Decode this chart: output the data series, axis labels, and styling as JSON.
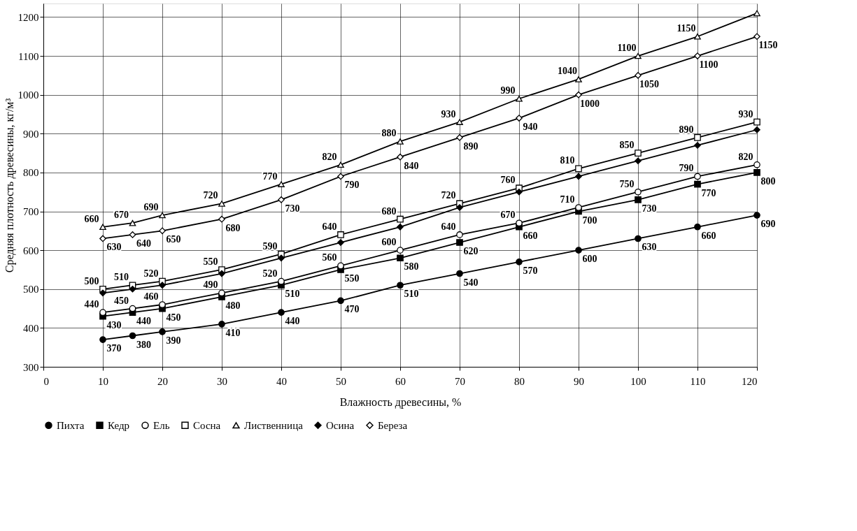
{
  "chart_data": {
    "type": "line",
    "xlabel": "Влажность древесины, %",
    "ylabel": "Средняя плотность древесины, кг/м³",
    "x": [
      10,
      15,
      20,
      30,
      40,
      50,
      60,
      70,
      80,
      90,
      100,
      110,
      120
    ],
    "xlim": [
      0,
      120
    ],
    "xticks": [
      0,
      10,
      20,
      30,
      40,
      50,
      60,
      70,
      80,
      90,
      100,
      110,
      120
    ],
    "ylim": [
      300,
      1235
    ],
    "yticks": [
      300,
      400,
      500,
      600,
      700,
      800,
      900,
      {
        "value": 1000,
        "label": "1000"
      },
      {
        "value": 1100,
        "label": "1100"
      },
      {
        "value": 1200,
        "label": "1200"
      }
    ],
    "grid": true,
    "legend": "bottom",
    "series": [
      {
        "name": "Пихта",
        "color": "#000000",
        "marker": "circle",
        "values": [
          370,
          380,
          390,
          410,
          440,
          470,
          510,
          540,
          570,
          600,
          630,
          660,
          690
        ],
        "value_labels": [
          "370",
          "380",
          "390",
          "410",
          "440",
          "470",
          "510",
          "540",
          "570",
          "600",
          "630",
          "660",
          "690"
        ]
      },
      {
        "name": "Кедр",
        "color": "#000000",
        "marker": "square",
        "values": [
          430,
          440,
          450,
          480,
          510,
          550,
          580,
          620,
          660,
          700,
          730,
          770,
          800
        ],
        "value_labels": [
          "430",
          "440",
          "450",
          "480",
          "510",
          "550",
          "580",
          "620",
          "660",
          "700",
          "730",
          "770",
          "800"
        ]
      },
      {
        "name": "Ель",
        "color": "#000000",
        "marker": "circle",
        "values": [
          440,
          450,
          460,
          490,
          520,
          560,
          600,
          640,
          670,
          710,
          750,
          790,
          820
        ],
        "value_labels": [
          "440",
          "450",
          "460",
          "490",
          "520",
          "560",
          "600",
          "640",
          "670",
          "710",
          "750",
          "790",
          "820"
        ]
      },
      {
        "name": "Сосна",
        "color": "#000000",
        "marker": "square",
        "values": [
          500,
          510,
          520,
          550,
          590,
          640,
          680,
          720,
          760,
          810,
          850,
          890,
          930
        ],
        "value_labels": [
          "500",
          "510",
          "520",
          "550",
          "590",
          "640",
          "680",
          "720",
          "760",
          "810",
          "850",
          "890",
          "930"
        ]
      },
      {
        "name": "Лиственница",
        "color": "#000000",
        "marker": "triangle",
        "values": [
          660,
          670,
          690,
          720,
          770,
          820,
          880,
          930,
          990,
          1040,
          1100,
          1150,
          1210
        ],
        "value_labels": [
          "660",
          "670",
          "690",
          "720",
          "770",
          "820",
          "880",
          "930",
          "990",
          "1040",
          "1100",
          "1150",
          null
        ]
      },
      {
        "name": "Осина",
        "color": "#000000",
        "marker": "diamond",
        "values": [
          490,
          500,
          510,
          540,
          580,
          620,
          660,
          710,
          750,
          790,
          830,
          870,
          910
        ],
        "value_labels": [
          null,
          null,
          null,
          null,
          null,
          null,
          null,
          null,
          null,
          null,
          null,
          null,
          null
        ]
      },
      {
        "name": "Береза",
        "color": "#000000",
        "marker": "diamond",
        "values": [
          630,
          640,
          650,
          680,
          730,
          790,
          840,
          890,
          940,
          1000,
          1050,
          1100,
          1150
        ],
        "value_labels": [
          "630",
          "640",
          "650",
          "680",
          "730",
          "790",
          "840",
          "890",
          "940",
          "1000",
          "1050",
          "1100",
          "1150"
        ]
      }
    ]
  }
}
